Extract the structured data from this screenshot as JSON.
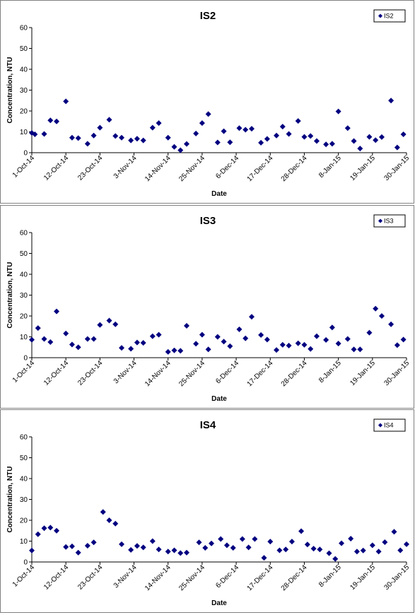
{
  "chart_data": [
    {
      "type": "scatter",
      "title": "IS2",
      "xlabel": "Date",
      "ylabel": "Concentration, NTU",
      "ylim": [
        0,
        60
      ],
      "yticks": [
        0,
        10,
        20,
        30,
        40,
        50,
        60
      ],
      "xticks": [
        "1-Oct-14",
        "12-Oct-14",
        "23-Oct-14",
        "3-Nov-14",
        "14-Nov-14",
        "25-Nov-14",
        "6-Dec-14",
        "17-Dec-14",
        "28-Dec-14",
        "8-Jan-15",
        "19-Jan-15",
        "30-Jan-15"
      ],
      "legend": "top-right",
      "marker_color": "#000080",
      "series": [
        {
          "name": "IS2",
          "points": [
            [
              "1-Oct-14",
              9.5
            ],
            [
              "2-Oct-14",
              8.8
            ],
            [
              "5-Oct-14",
              9.0
            ],
            [
              "7-Oct-14",
              15.5
            ],
            [
              "9-Oct-14",
              15.0
            ],
            [
              "12-Oct-14",
              24.6
            ],
            [
              "14-Oct-14",
              7.2
            ],
            [
              "16-Oct-14",
              7.0
            ],
            [
              "19-Oct-14",
              4.3
            ],
            [
              "21-Oct-14",
              8.2
            ],
            [
              "23-Oct-14",
              12.0
            ],
            [
              "26-Oct-14",
              15.8
            ],
            [
              "28-Oct-14",
              8.0
            ],
            [
              "30-Oct-14",
              7.2
            ],
            [
              "2-Nov-14",
              5.9
            ],
            [
              "4-Nov-14",
              6.7
            ],
            [
              "6-Nov-14",
              5.9
            ],
            [
              "9-Nov-14",
              12.0
            ],
            [
              "11-Nov-14",
              14.2
            ],
            [
              "14-Nov-14",
              7.2
            ],
            [
              "16-Nov-14",
              2.8
            ],
            [
              "18-Nov-14",
              1.2
            ],
            [
              "20-Nov-14",
              4.2
            ],
            [
              "23-Nov-14",
              9.2
            ],
            [
              "25-Nov-14",
              14.2
            ],
            [
              "27-Nov-14",
              18.5
            ],
            [
              "30-Nov-14",
              4.9
            ],
            [
              "2-Dec-14",
              10.3
            ],
            [
              "4-Dec-14",
              5.0
            ],
            [
              "7-Dec-14",
              11.8
            ],
            [
              "9-Dec-14",
              11.0
            ],
            [
              "11-Dec-14",
              11.5
            ],
            [
              "14-Dec-14",
              4.8
            ],
            [
              "16-Dec-14",
              6.6
            ],
            [
              "19-Dec-14",
              8.2
            ],
            [
              "21-Dec-14",
              12.5
            ],
            [
              "23-Dec-14",
              9.0
            ],
            [
              "26-Dec-14",
              15.2
            ],
            [
              "28-Dec-14",
              7.6
            ],
            [
              "30-Dec-14",
              8.0
            ],
            [
              "1-Jan-15",
              5.6
            ],
            [
              "4-Jan-15",
              4.0
            ],
            [
              "6-Jan-15",
              4.3
            ],
            [
              "8-Jan-15",
              19.8
            ],
            [
              "11-Jan-15",
              11.8
            ],
            [
              "13-Jan-15",
              5.6
            ],
            [
              "15-Jan-15",
              2.0
            ],
            [
              "18-Jan-15",
              7.6
            ],
            [
              "20-Jan-15",
              6.0
            ],
            [
              "22-Jan-15",
              7.5
            ],
            [
              "25-Jan-15",
              25.0
            ],
            [
              "27-Jan-15",
              2.5
            ],
            [
              "29-Jan-15",
              8.8
            ]
          ]
        }
      ]
    },
    {
      "type": "scatter",
      "title": "IS3",
      "xlabel": "Date",
      "ylabel": "Concentration, NTU",
      "ylim": [
        0,
        60
      ],
      "yticks": [
        0,
        10,
        20,
        30,
        40,
        50,
        60
      ],
      "xticks": [
        "1-Oct-14",
        "12-Oct-14",
        "23-Oct-14",
        "3-Nov-14",
        "14-Nov-14",
        "25-Nov-14",
        "6-Dec-14",
        "17-Dec-14",
        "28-Dec-14",
        "8-Jan-15",
        "19-Jan-15",
        "30-Jan-15"
      ],
      "legend": "top-right",
      "marker_color": "#000080",
      "series": [
        {
          "name": "IS3",
          "points": [
            [
              "1-Oct-14",
              8.6
            ],
            [
              "3-Oct-14",
              14.2
            ],
            [
              "5-Oct-14",
              9.0
            ],
            [
              "7-Oct-14",
              7.5
            ],
            [
              "9-Oct-14",
              22.2
            ],
            [
              "12-Oct-14",
              11.6
            ],
            [
              "14-Oct-14",
              6.3
            ],
            [
              "16-Oct-14",
              5.0
            ],
            [
              "19-Oct-14",
              9.0
            ],
            [
              "21-Oct-14",
              9.0
            ],
            [
              "23-Oct-14",
              15.7
            ],
            [
              "26-Oct-14",
              17.8
            ],
            [
              "28-Oct-14",
              16.0
            ],
            [
              "30-Oct-14",
              4.7
            ],
            [
              "2-Nov-14",
              4.3
            ],
            [
              "4-Nov-14",
              7.3
            ],
            [
              "6-Nov-14",
              7.1
            ],
            [
              "9-Nov-14",
              10.3
            ],
            [
              "11-Nov-14",
              11.0
            ],
            [
              "14-Nov-14",
              2.8
            ],
            [
              "16-Nov-14",
              3.5
            ],
            [
              "18-Nov-14",
              3.3
            ],
            [
              "20-Nov-14",
              15.3
            ],
            [
              "23-Nov-14",
              6.7
            ],
            [
              "25-Nov-14",
              11.0
            ],
            [
              "27-Nov-14",
              4.0
            ],
            [
              "30-Nov-14",
              10.0
            ],
            [
              "2-Dec-14",
              7.7
            ],
            [
              "4-Dec-14",
              5.5
            ],
            [
              "7-Dec-14",
              13.6
            ],
            [
              "9-Dec-14",
              9.3
            ],
            [
              "11-Dec-14",
              19.6
            ],
            [
              "14-Dec-14",
              10.9
            ],
            [
              "16-Dec-14",
              8.7
            ],
            [
              "19-Dec-14",
              3.7
            ],
            [
              "21-Dec-14",
              6.2
            ],
            [
              "23-Dec-14",
              5.8
            ],
            [
              "26-Dec-14",
              6.9
            ],
            [
              "28-Dec-14",
              6.2
            ],
            [
              "30-Dec-14",
              4.2
            ],
            [
              "1-Jan-15",
              10.3
            ],
            [
              "4-Jan-15",
              8.5
            ],
            [
              "6-Jan-15",
              14.5
            ],
            [
              "8-Jan-15",
              6.8
            ],
            [
              "11-Jan-15",
              9.0
            ],
            [
              "13-Jan-15",
              4.0
            ],
            [
              "15-Jan-15",
              4.0
            ],
            [
              "18-Jan-15",
              12.0
            ],
            [
              "20-Jan-15",
              23.5
            ],
            [
              "22-Jan-15",
              20.0
            ],
            [
              "25-Jan-15",
              16.0
            ],
            [
              "27-Jan-15",
              6.0
            ],
            [
              "29-Jan-15",
              8.7
            ]
          ]
        }
      ]
    },
    {
      "type": "scatter",
      "title": "IS4",
      "xlabel": "Date",
      "ylabel": "Concentration, NTU",
      "ylim": [
        0,
        60
      ],
      "yticks": [
        0,
        10,
        20,
        30,
        40,
        50,
        60
      ],
      "xticks": [
        "1-Oct-14",
        "12-Oct-14",
        "23-Oct-14",
        "3-Nov-14",
        "14-Nov-14",
        "25-Nov-14",
        "6-Dec-14",
        "17-Dec-14",
        "28-Dec-14",
        "8-Jan-15",
        "19-Jan-15",
        "30-Jan-15"
      ],
      "legend": "top-right",
      "marker_color": "#000080",
      "series": [
        {
          "name": "IS4",
          "points": [
            [
              "1-Oct-14",
              5.5
            ],
            [
              "3-Oct-14",
              13.3
            ],
            [
              "5-Oct-14",
              16.2
            ],
            [
              "7-Oct-14",
              16.5
            ],
            [
              "9-Oct-14",
              15.0
            ],
            [
              "12-Oct-14",
              7.2
            ],
            [
              "14-Oct-14",
              7.5
            ],
            [
              "16-Oct-14",
              4.5
            ],
            [
              "19-Oct-14",
              7.8
            ],
            [
              "21-Oct-14",
              9.4
            ],
            [
              "24-Oct-14",
              24.0
            ],
            [
              "26-Oct-14",
              20.0
            ],
            [
              "28-Oct-14",
              18.4
            ],
            [
              "30-Oct-14",
              8.5
            ],
            [
              "2-Nov-14",
              5.8
            ],
            [
              "4-Nov-14",
              7.7
            ],
            [
              "6-Nov-14",
              7.0
            ],
            [
              "9-Nov-14",
              10.0
            ],
            [
              "11-Nov-14",
              6.0
            ],
            [
              "14-Nov-14",
              5.0
            ],
            [
              "16-Nov-14",
              5.6
            ],
            [
              "18-Nov-14",
              4.3
            ],
            [
              "20-Nov-14",
              4.5
            ],
            [
              "24-Nov-14",
              9.4
            ],
            [
              "26-Nov-14",
              6.8
            ],
            [
              "28-Nov-14",
              8.9
            ],
            [
              "1-Dec-14",
              11.0
            ],
            [
              "3-Dec-14",
              8.0
            ],
            [
              "5-Dec-14",
              6.8
            ],
            [
              "8-Dec-14",
              11.0
            ],
            [
              "10-Dec-14",
              7.0
            ],
            [
              "12-Dec-14",
              11.0
            ],
            [
              "15-Dec-14",
              2.0
            ],
            [
              "17-Dec-14",
              9.8
            ],
            [
              "20-Dec-14",
              5.6
            ],
            [
              "22-Dec-14",
              6.0
            ],
            [
              "24-Dec-14",
              9.8
            ],
            [
              "27-Dec-14",
              14.8
            ],
            [
              "29-Dec-14",
              8.4
            ],
            [
              "31-Dec-14",
              6.4
            ],
            [
              "2-Jan-15",
              6.0
            ],
            [
              "5-Jan-15",
              4.2
            ],
            [
              "7-Jan-15",
              1.5
            ],
            [
              "9-Jan-15",
              9.0
            ],
            [
              "12-Jan-15",
              11.2
            ],
            [
              "14-Jan-15",
              5.0
            ],
            [
              "16-Jan-15",
              5.5
            ],
            [
              "19-Jan-15",
              8.0
            ],
            [
              "21-Jan-15",
              5.0
            ],
            [
              "23-Jan-15",
              9.5
            ],
            [
              "26-Jan-15",
              14.5
            ],
            [
              "28-Jan-15",
              5.6
            ],
            [
              "30-Jan-15",
              8.5
            ]
          ]
        }
      ]
    }
  ]
}
